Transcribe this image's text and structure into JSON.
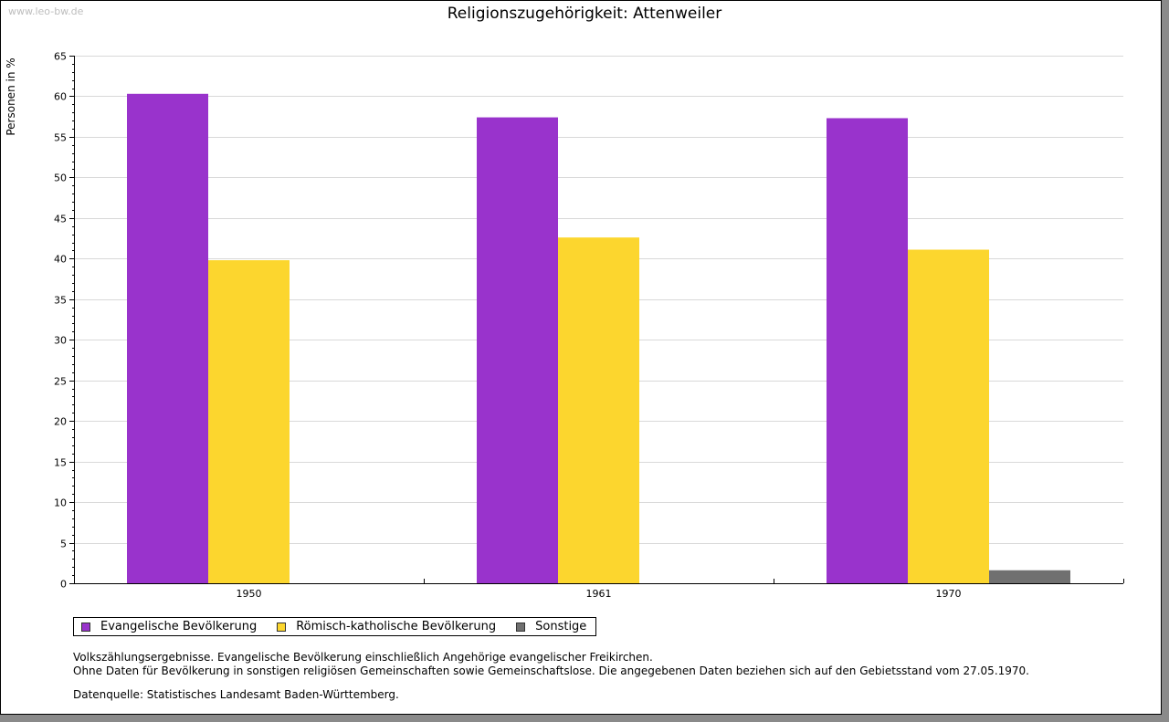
{
  "watermark": "www.leo-bw.de",
  "chart_data": {
    "type": "bar",
    "title": "Religionszugehörigkeit: Attenweiler",
    "ylabel": "Personen in %",
    "xlabel": "",
    "ylim": [
      0,
      65
    ],
    "yticks": [
      0,
      5,
      10,
      15,
      20,
      25,
      30,
      35,
      40,
      45,
      50,
      55,
      60,
      65
    ],
    "grid": true,
    "legend_position": "bottom-left",
    "categories": [
      "1950",
      "1961",
      "1970"
    ],
    "series": [
      {
        "name": "Evangelische Bevölkerung",
        "color": "#9933cc",
        "values": [
          60.3,
          57.4,
          57.3
        ]
      },
      {
        "name": "Römisch-katholische Bevölkerung",
        "color": "#fcd62e",
        "values": [
          39.8,
          42.6,
          41.1
        ]
      },
      {
        "name": "Sonstige",
        "color": "#707070",
        "values": [
          null,
          null,
          1.6
        ]
      }
    ]
  },
  "notes": {
    "line1": "Volkszählungsergebnisse. Evangelische Bevölkerung einschließlich Angehörige evangelischer Freikirchen.",
    "line2": "Ohne Daten für Bevölkerung in sonstigen religiösen Gemeinschaften sowie Gemeinschaftslose. Die angegebenen Daten beziehen sich auf den Gebietsstand vom 27.05.1970.",
    "source": "Datenquelle: Statistisches Landesamt Baden-Württemberg."
  }
}
